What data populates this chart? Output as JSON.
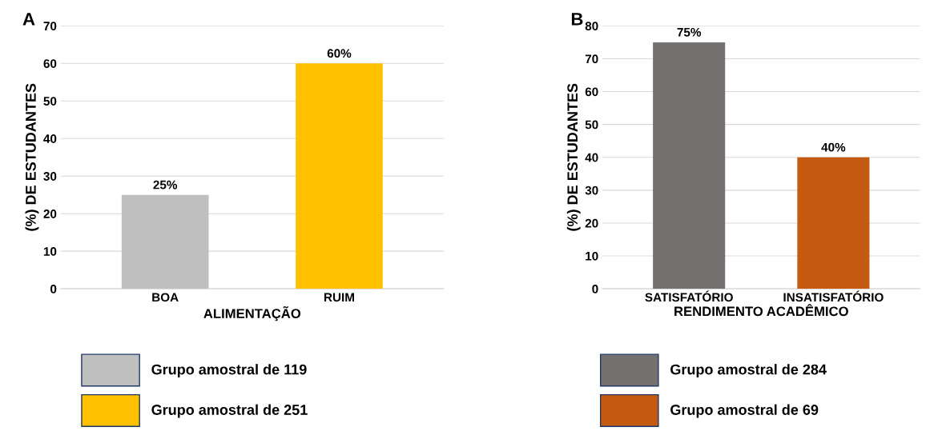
{
  "chart_data": [
    {
      "type": "bar",
      "annotations": [
        "A"
      ],
      "categories": [
        "BOA",
        "RUIM"
      ],
      "xlabel": "ALIMENTAÇÃO",
      "ylabel": "(%) DE ESTUDANTES",
      "ylim": [
        0,
        70
      ],
      "yticks": [
        0,
        10,
        20,
        30,
        40,
        50,
        60,
        70
      ],
      "grid": "y",
      "legend": "bottom",
      "series": [
        {
          "name": "Grupo amostral de 119",
          "color": "#bfbfbf",
          "values": [
            25,
            null
          ],
          "value_labels": [
            "25%",
            null
          ]
        },
        {
          "name": "Grupo amostral de 251",
          "color": "#ffc000",
          "values": [
            null,
            60
          ],
          "value_labels": [
            null,
            "60%"
          ]
        }
      ]
    },
    {
      "type": "bar",
      "annotations": [
        "B"
      ],
      "categories": [
        "SATISFATÓRIO",
        "INSATISFATÓRIO"
      ],
      "xlabel": "RENDIMENTO ACADÊMICO",
      "ylabel": "(%) DE ESTUDANTES",
      "ylim": [
        0,
        80
      ],
      "yticks": [
        0,
        10,
        20,
        30,
        40,
        50,
        60,
        70,
        80
      ],
      "grid": "y",
      "legend": "bottom",
      "series": [
        {
          "name": "Grupo amostral de 284",
          "color": "#767171",
          "values": [
            75,
            null
          ],
          "value_labels": [
            "75%",
            null
          ]
        },
        {
          "name": "Grupo amostral de 69",
          "color": "#c55a11",
          "values": [
            null,
            40
          ],
          "value_labels": [
            null,
            "40%"
          ]
        }
      ]
    }
  ]
}
